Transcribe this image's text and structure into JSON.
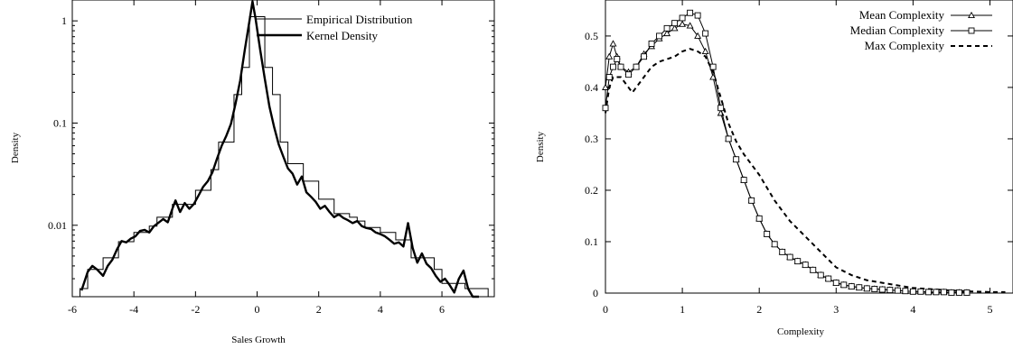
{
  "chart_data": [
    {
      "type": "line",
      "title": "",
      "xlabel": "Sales Growth",
      "ylabel": "Density",
      "xscale": "linear",
      "yscale": "log",
      "xlim": [
        -6,
        7.7
      ],
      "ylim": [
        0.002,
        1.6
      ],
      "grid": false,
      "legend_position": "top-right",
      "x_ticks": [
        -6,
        -4,
        -2,
        0,
        2,
        4,
        6
      ],
      "x_tick_labels": [
        "-6",
        "-4",
        "-2",
        "0",
        "2",
        "4",
        "6"
      ],
      "y_ticks": [
        0.01,
        0.1,
        1
      ],
      "y_tick_labels": [
        "0.01",
        "0.1",
        "1"
      ],
      "series": [
        {
          "name": "Empirical Distribution",
          "style": "step",
          "bin_edges": [
            -5.75,
            -5.5,
            -5.25,
            -5.0,
            -4.75,
            -4.5,
            -4.25,
            -4.0,
            -3.75,
            -3.5,
            -3.25,
            -3.0,
            -2.75,
            -2.5,
            -2.25,
            -2.0,
            -1.75,
            -1.5,
            -1.25,
            -1.0,
            -0.75,
            -0.5,
            -0.25,
            0.0,
            0.25,
            0.5,
            0.75,
            1.0,
            1.25,
            1.5,
            1.75,
            2.0,
            2.25,
            2.5,
            2.75,
            3.0,
            3.25,
            3.5,
            3.75,
            4.0,
            4.25,
            4.5,
            4.75,
            5.0,
            5.25,
            5.5,
            5.75,
            6.0,
            6.25,
            6.5,
            6.75,
            7.0,
            7.25,
            7.5
          ],
          "values": [
            0.0024,
            0.0037,
            0.0037,
            0.0048,
            0.0048,
            0.0069,
            0.0069,
            0.0085,
            0.0085,
            0.0098,
            0.012,
            0.012,
            0.016,
            0.016,
            0.016,
            0.022,
            0.022,
            0.035,
            0.065,
            0.065,
            0.19,
            0.35,
            1.1,
            1.1,
            0.35,
            0.19,
            0.065,
            0.04,
            0.04,
            0.027,
            0.027,
            0.018,
            0.018,
            0.013,
            0.013,
            0.012,
            0.011,
            0.0095,
            0.0095,
            0.0085,
            0.0085,
            0.0072,
            0.0072,
            0.0048,
            0.0048,
            0.0048,
            0.0037,
            0.0027,
            0.0027,
            0.0027,
            0.0024,
            0.0024,
            0.0024
          ]
        },
        {
          "name": "Kernel Density",
          "style": "line",
          "x": [
            -5.7,
            -5.5,
            -5.35,
            -5.2,
            -5.0,
            -4.85,
            -4.7,
            -4.55,
            -4.4,
            -4.25,
            -4.1,
            -3.95,
            -3.8,
            -3.65,
            -3.5,
            -3.35,
            -3.2,
            -3.05,
            -2.9,
            -2.75,
            -2.65,
            -2.5,
            -2.35,
            -2.2,
            -2.05,
            -1.9,
            -1.75,
            -1.6,
            -1.45,
            -1.3,
            -1.15,
            -1.0,
            -0.85,
            -0.7,
            -0.55,
            -0.4,
            -0.25,
            -0.15,
            -0.05,
            0.1,
            0.25,
            0.4,
            0.55,
            0.7,
            0.85,
            1.0,
            1.15,
            1.3,
            1.45,
            1.6,
            1.75,
            1.9,
            2.05,
            2.2,
            2.35,
            2.5,
            2.65,
            2.8,
            2.95,
            3.1,
            3.25,
            3.4,
            3.55,
            3.7,
            3.85,
            4.0,
            4.15,
            4.3,
            4.45,
            4.6,
            4.75,
            4.9,
            5.05,
            5.2,
            5.35,
            5.5,
            5.65,
            5.8,
            5.95,
            6.1,
            6.25,
            6.4,
            6.55,
            6.7,
            6.85,
            7.0,
            7.2
          ],
          "y": [
            0.0023,
            0.0035,
            0.004,
            0.0037,
            0.0032,
            0.004,
            0.0046,
            0.0058,
            0.007,
            0.0068,
            0.0074,
            0.0078,
            0.0088,
            0.009,
            0.0085,
            0.0098,
            0.0106,
            0.0115,
            0.0107,
            0.0145,
            0.0175,
            0.0135,
            0.0165,
            0.0145,
            0.0162,
            0.0196,
            0.0238,
            0.027,
            0.033,
            0.045,
            0.06,
            0.075,
            0.098,
            0.155,
            0.26,
            0.52,
            0.99,
            1.55,
            1.05,
            0.52,
            0.27,
            0.145,
            0.092,
            0.062,
            0.047,
            0.036,
            0.032,
            0.025,
            0.03,
            0.021,
            0.019,
            0.017,
            0.0145,
            0.0155,
            0.0135,
            0.012,
            0.0128,
            0.0118,
            0.0112,
            0.0105,
            0.011,
            0.0098,
            0.0094,
            0.0092,
            0.0085,
            0.0082,
            0.0078,
            0.0072,
            0.0066,
            0.0068,
            0.0062,
            0.0105,
            0.006,
            0.0043,
            0.0053,
            0.0042,
            0.0038,
            0.0032,
            0.0028,
            0.003,
            0.0026,
            0.0022,
            0.003,
            0.0036,
            0.0024,
            0.0019,
            0.0016
          ]
        }
      ]
    },
    {
      "type": "line",
      "title": "",
      "xlabel": "Complexity",
      "ylabel": "Density",
      "xlim": [
        0,
        5.3
      ],
      "ylim": [
        0,
        0.57
      ],
      "grid": false,
      "legend_position": "top-right",
      "x_ticks": [
        0,
        1,
        2,
        3,
        4,
        5
      ],
      "x_tick_labels": [
        "0",
        "1",
        "2",
        "3",
        "4",
        "5"
      ],
      "y_ticks": [
        0,
        0.1,
        0.2,
        0.3,
        0.4,
        0.5
      ],
      "y_tick_labels": [
        "0",
        "0.1",
        "0.2",
        "0.3",
        "0.4",
        "0.5"
      ],
      "series": [
        {
          "name": "Mean Complexity",
          "marker": "triangle",
          "x": [
            0.0,
            0.05,
            0.1,
            0.15,
            0.2,
            0.3,
            0.4,
            0.5,
            0.6,
            0.7,
            0.8,
            0.9,
            1.0,
            1.1,
            1.2,
            1.3,
            1.4,
            1.5,
            1.6,
            1.7,
            1.8,
            1.9,
            2.0,
            2.1,
            2.2,
            2.3,
            2.4,
            2.5,
            2.6,
            2.7,
            2.8,
            2.9,
            3.0,
            3.1,
            3.2,
            3.3,
            3.4,
            3.5,
            3.6,
            3.7,
            3.8,
            3.9,
            4.0,
            4.1,
            4.2,
            4.3,
            4.4,
            4.5,
            4.6,
            4.7
          ],
          "y": [
            0.4,
            0.46,
            0.485,
            0.46,
            0.44,
            0.43,
            0.44,
            0.465,
            0.48,
            0.495,
            0.505,
            0.515,
            0.523,
            0.52,
            0.5,
            0.47,
            0.42,
            0.35,
            0.3,
            0.26,
            0.22,
            0.18,
            0.145,
            0.115,
            0.095,
            0.08,
            0.07,
            0.062,
            0.055,
            0.045,
            0.035,
            0.028,
            0.02,
            0.016,
            0.013,
            0.011,
            0.009,
            0.008,
            0.007,
            0.006,
            0.005,
            0.004,
            0.003,
            0.003,
            0.002,
            0.002,
            0.002,
            0.001,
            0.001,
            0.001
          ]
        },
        {
          "name": "Median Complexity",
          "marker": "square",
          "x": [
            0.0,
            0.05,
            0.1,
            0.15,
            0.2,
            0.3,
            0.4,
            0.5,
            0.6,
            0.7,
            0.8,
            0.9,
            1.0,
            1.1,
            1.2,
            1.3,
            1.4,
            1.5,
            1.6,
            1.7,
            1.8,
            1.9,
            2.0,
            2.1,
            2.2,
            2.3,
            2.4,
            2.5,
            2.6,
            2.7,
            2.8,
            2.9,
            3.0,
            3.1,
            3.2,
            3.3,
            3.4,
            3.5,
            3.6,
            3.7,
            3.8,
            3.9,
            4.0,
            4.1,
            4.2,
            4.3,
            4.4,
            4.5,
            4.6,
            4.7
          ],
          "y": [
            0.36,
            0.42,
            0.44,
            0.455,
            0.44,
            0.425,
            0.44,
            0.46,
            0.485,
            0.5,
            0.515,
            0.525,
            0.535,
            0.545,
            0.54,
            0.505,
            0.44,
            0.36,
            0.3,
            0.26,
            0.22,
            0.18,
            0.145,
            0.115,
            0.095,
            0.08,
            0.07,
            0.062,
            0.055,
            0.045,
            0.035,
            0.028,
            0.02,
            0.016,
            0.013,
            0.011,
            0.009,
            0.008,
            0.007,
            0.006,
            0.005,
            0.004,
            0.003,
            0.003,
            0.002,
            0.002,
            0.002,
            0.001,
            0.001,
            0.001
          ]
        },
        {
          "name": "Max Complexity",
          "marker": "none",
          "dash": true,
          "x": [
            0.0,
            0.05,
            0.1,
            0.2,
            0.3,
            0.35,
            0.4,
            0.5,
            0.6,
            0.7,
            0.8,
            0.9,
            1.0,
            1.1,
            1.2,
            1.3,
            1.4,
            1.5,
            1.6,
            1.7,
            1.8,
            1.9,
            2.0,
            2.2,
            2.4,
            2.6,
            2.8,
            3.0,
            3.2,
            3.4,
            3.6,
            3.8,
            4.0,
            4.2,
            4.4,
            4.6,
            4.8,
            5.0,
            5.2
          ],
          "y": [
            0.35,
            0.4,
            0.42,
            0.42,
            0.4,
            0.39,
            0.4,
            0.42,
            0.44,
            0.45,
            0.455,
            0.46,
            0.47,
            0.475,
            0.47,
            0.46,
            0.43,
            0.38,
            0.33,
            0.295,
            0.27,
            0.25,
            0.23,
            0.18,
            0.14,
            0.11,
            0.08,
            0.05,
            0.035,
            0.025,
            0.02,
            0.015,
            0.01,
            0.008,
            0.006,
            0.004,
            0.003,
            0.002,
            0.002
          ]
        }
      ]
    }
  ]
}
